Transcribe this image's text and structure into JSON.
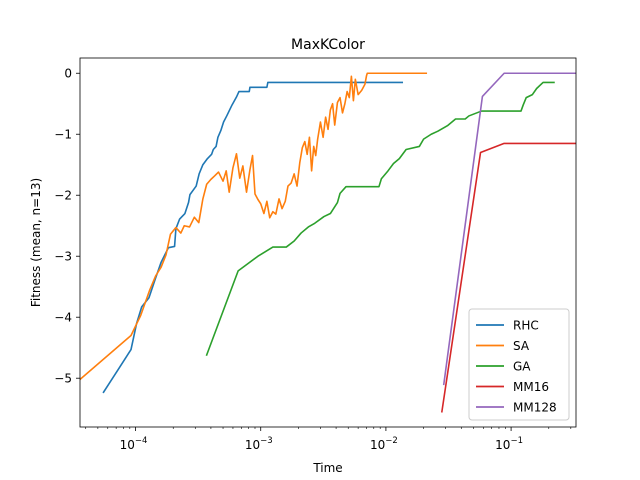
{
  "chart_data": {
    "type": "line",
    "title": "MaxKColor",
    "xlabel": "Time",
    "ylabel": "Fitness (mean, n=13)",
    "xscale": "log",
    "xlim": [
      3.6e-05,
      0.33
    ],
    "ylim": [
      -5.8,
      0.25
    ],
    "grid": false,
    "legend_position": "lower-right",
    "x_ticks": [
      {
        "value": 0.0001,
        "base": "10",
        "exp": "−4"
      },
      {
        "value": 0.001,
        "base": "10",
        "exp": "−3"
      },
      {
        "value": 0.01,
        "base": "10",
        "exp": "−2"
      },
      {
        "value": 0.1,
        "base": "10",
        "exp": "−1"
      }
    ],
    "y_ticks": [
      {
        "value": 0,
        "label": "0"
      },
      {
        "value": -1,
        "label": "−1"
      },
      {
        "value": -2,
        "label": "−2"
      },
      {
        "value": -3,
        "label": "−3"
      },
      {
        "value": -4,
        "label": "−4"
      },
      {
        "value": -5,
        "label": "−5"
      }
    ],
    "series": [
      {
        "name": "RHC",
        "color": "#1f77b4",
        "points": [
          [
            5.55e-05,
            -5.23
          ],
          [
            7.2e-05,
            -4.87
          ],
          [
            9.2e-05,
            -4.53
          ],
          [
            0.000102,
            -4.1
          ],
          [
            0.000112,
            -3.83
          ],
          [
            0.000128,
            -3.68
          ],
          [
            0.000145,
            -3.35
          ],
          [
            0.00016,
            -3.1
          ],
          [
            0.000183,
            -2.86
          ],
          [
            0.000205,
            -2.84
          ],
          [
            0.00021,
            -2.55
          ],
          [
            0.000225,
            -2.39
          ],
          [
            0.000248,
            -2.3
          ],
          [
            0.000265,
            -2.12
          ],
          [
            0.000272,
            -1.99
          ],
          [
            0.000305,
            -1.85
          ],
          [
            0.000322,
            -1.65
          ],
          [
            0.000345,
            -1.5
          ],
          [
            0.000375,
            -1.4
          ],
          [
            0.000405,
            -1.33
          ],
          [
            0.000418,
            -1.25
          ],
          [
            0.00044,
            -1.2
          ],
          [
            0.000455,
            -1.05
          ],
          [
            0.00048,
            -0.94
          ],
          [
            0.000505,
            -0.8
          ],
          [
            0.000535,
            -0.7
          ],
          [
            0.00059,
            -0.52
          ],
          [
            0.00064,
            -0.39
          ],
          [
            0.00067,
            -0.3
          ],
          [
            0.00081,
            -0.3
          ],
          [
            0.00082,
            -0.23
          ],
          [
            0.00112,
            -0.23
          ],
          [
            0.00114,
            -0.15
          ],
          [
            0.0135,
            -0.15
          ]
        ]
      },
      {
        "name": "SA",
        "color": "#ff7f0e",
        "points": [
          [
            3.6e-05,
            -5.02
          ],
          [
            9.2e-05,
            -4.3
          ],
          [
            0.00011,
            -3.97
          ],
          [
            0.00013,
            -3.55
          ],
          [
            0.000145,
            -3.32
          ],
          [
            0.00016,
            -3.18
          ],
          [
            0.000175,
            -2.98
          ],
          [
            0.00019,
            -2.64
          ],
          [
            0.00021,
            -2.53
          ],
          [
            0.00023,
            -2.62
          ],
          [
            0.000245,
            -2.5
          ],
          [
            0.00027,
            -2.52
          ],
          [
            0.000295,
            -2.36
          ],
          [
            0.00032,
            -2.45
          ],
          [
            0.000345,
            -2.06
          ],
          [
            0.00037,
            -1.82
          ],
          [
            0.0004,
            -1.74
          ],
          [
            0.00043,
            -1.68
          ],
          [
            0.00046,
            -1.62
          ],
          [
            0.0005,
            -1.77
          ],
          [
            0.00053,
            -1.6
          ],
          [
            0.00056,
            -1.95
          ],
          [
            0.0006,
            -1.55
          ],
          [
            0.00064,
            -1.32
          ],
          [
            0.00068,
            -1.72
          ],
          [
            0.00072,
            -1.52
          ],
          [
            0.00077,
            -1.95
          ],
          [
            0.00082,
            -1.58
          ],
          [
            0.00086,
            -1.35
          ],
          [
            0.0009,
            -1.98
          ],
          [
            0.00095,
            -2.07
          ],
          [
            0.001,
            -2.14
          ],
          [
            0.00106,
            -2.3
          ],
          [
            0.00112,
            -2.1
          ],
          [
            0.00118,
            -2.37
          ],
          [
            0.00125,
            -2.27
          ],
          [
            0.00132,
            -2.31
          ],
          [
            0.0014,
            -2.06
          ],
          [
            0.00148,
            -2.22
          ],
          [
            0.00157,
            -2.1
          ],
          [
            0.00165,
            -1.85
          ],
          [
            0.00175,
            -1.8
          ],
          [
            0.00185,
            -1.65
          ],
          [
            0.00195,
            -1.85
          ],
          [
            0.00205,
            -1.47
          ],
          [
            0.00215,
            -1.22
          ],
          [
            0.00225,
            -1.12
          ],
          [
            0.00235,
            -1.33
          ],
          [
            0.00245,
            -1.05
          ],
          [
            0.00255,
            -1.6
          ],
          [
            0.00265,
            -1.2
          ],
          [
            0.00275,
            -1.35
          ],
          [
            0.00285,
            -1.08
          ],
          [
            0.003,
            -0.8
          ],
          [
            0.00315,
            -1.05
          ],
          [
            0.0033,
            -0.72
          ],
          [
            0.00345,
            -0.92
          ],
          [
            0.0036,
            -0.6
          ],
          [
            0.00375,
            -0.5
          ],
          [
            0.0039,
            -0.85
          ],
          [
            0.0041,
            -0.48
          ],
          [
            0.0043,
            -0.4
          ],
          [
            0.0045,
            -0.65
          ],
          [
            0.0047,
            -0.5
          ],
          [
            0.0049,
            -0.3
          ],
          [
            0.0051,
            -0.4
          ],
          [
            0.0053,
            -0.05
          ],
          [
            0.0055,
            -0.45
          ],
          [
            0.0057,
            -0.1
          ],
          [
            0.006,
            -0.35
          ],
          [
            0.0064,
            -0.28
          ],
          [
            0.0068,
            -0.18
          ],
          [
            0.007,
            -0.04
          ],
          [
            0.0071,
            0.0
          ],
          [
            0.021,
            0.0
          ]
        ]
      },
      {
        "name": "GA",
        "color": "#2ca02c",
        "points": [
          [
            0.00037,
            -4.62
          ],
          [
            0.00066,
            -3.24
          ],
          [
            0.00095,
            -3.0
          ],
          [
            0.00125,
            -2.85
          ],
          [
            0.0016,
            -2.85
          ],
          [
            0.00185,
            -2.75
          ],
          [
            0.0021,
            -2.62
          ],
          [
            0.0024,
            -2.52
          ],
          [
            0.0027,
            -2.46
          ],
          [
            0.0032,
            -2.35
          ],
          [
            0.0036,
            -2.3
          ],
          [
            0.0041,
            -2.12
          ],
          [
            0.0043,
            -1.97
          ],
          [
            0.0048,
            -1.86
          ],
          [
            0.0088,
            -1.86
          ],
          [
            0.0092,
            -1.73
          ],
          [
            0.0104,
            -1.6
          ],
          [
            0.0115,
            -1.48
          ],
          [
            0.0128,
            -1.4
          ],
          [
            0.0145,
            -1.25
          ],
          [
            0.0185,
            -1.2
          ],
          [
            0.02,
            -1.08
          ],
          [
            0.023,
            -1.0
          ],
          [
            0.026,
            -0.95
          ],
          [
            0.031,
            -0.86
          ],
          [
            0.036,
            -0.75
          ],
          [
            0.043,
            -0.75
          ],
          [
            0.046,
            -0.7
          ],
          [
            0.058,
            -0.62
          ],
          [
            0.12,
            -0.62
          ],
          [
            0.125,
            -0.52
          ],
          [
            0.132,
            -0.4
          ],
          [
            0.148,
            -0.35
          ],
          [
            0.16,
            -0.25
          ],
          [
            0.18,
            -0.15
          ],
          [
            0.22,
            -0.15
          ]
        ]
      },
      {
        "name": "MM16",
        "color": "#d62728",
        "points": [
          [
            0.028,
            -5.55
          ],
          [
            0.057,
            -1.3
          ],
          [
            0.088,
            -1.15
          ],
          [
            0.33,
            -1.15
          ]
        ]
      },
      {
        "name": "MM128",
        "color": "#9467bd",
        "points": [
          [
            0.029,
            -5.1
          ],
          [
            0.059,
            -0.38
          ],
          [
            0.088,
            0.0
          ],
          [
            0.33,
            0.0
          ]
        ]
      }
    ]
  }
}
